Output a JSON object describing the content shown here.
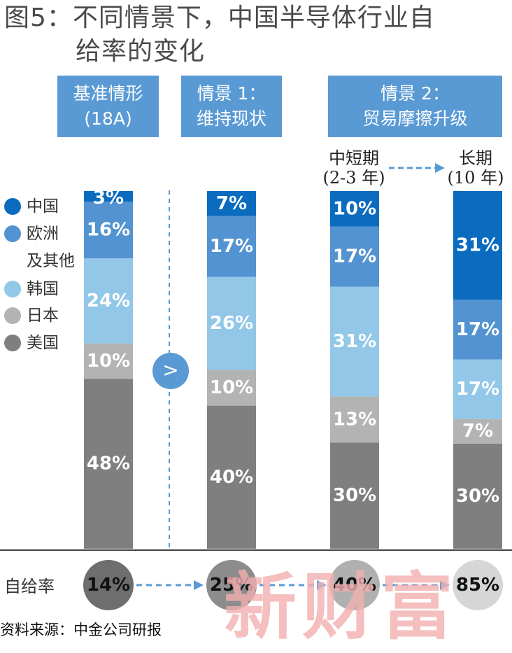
{
  "title": {
    "line1": "图5：不同情景下，中国半导体行业自",
    "line2": "给率的变化"
  },
  "scenarios": [
    {
      "line1": "基准情形",
      "line2": "(18A)"
    },
    {
      "line1": "情景 1：",
      "line2": "维持现状"
    },
    {
      "line1": "情景 2：",
      "line2": "贸易摩擦升级"
    }
  ],
  "periods": [
    {
      "line1": "中短期",
      "line2": "(2-3 年)"
    },
    {
      "line1": "长期",
      "line2": "(10 年)"
    }
  ],
  "legend": [
    {
      "label": "中国",
      "color": "#0a6bbf"
    },
    {
      "label": "欧洲",
      "label2": "及其他",
      "color": "#5493d1"
    },
    {
      "label": "韩国",
      "color": "#92c7e8"
    },
    {
      "label": "日本",
      "color": "#b3b3b3"
    },
    {
      "label": "美国",
      "color": "#7f7f7f"
    }
  ],
  "compare_symbol": ">",
  "self_sufficiency": {
    "label": "自给率",
    "values": [
      "14%",
      "25%",
      "40%",
      "85%"
    ]
  },
  "source": "资料来源：中金公司研报",
  "watermark": "新财富",
  "chart_data": {
    "type": "bar",
    "stacked": true,
    "categories": [
      "基准情形 (18A)",
      "情景 1：维持现状",
      "情景 2：中短期 (2-3 年)",
      "情景 2：长期 (10 年)"
    ],
    "series": [
      {
        "name": "美国",
        "color": "#7f7f7f",
        "values": [
          48,
          40,
          30,
          30
        ]
      },
      {
        "name": "日本",
        "color": "#b3b3b3",
        "values": [
          10,
          10,
          13,
          7
        ]
      },
      {
        "name": "韩国",
        "color": "#92c7e8",
        "values": [
          24,
          26,
          31,
          17
        ]
      },
      {
        "name": "欧洲及其他",
        "color": "#5493d1",
        "values": [
          16,
          17,
          17,
          17
        ]
      },
      {
        "name": "中国",
        "color": "#0a6bbf",
        "values": [
          3,
          7,
          10,
          31
        ]
      }
    ],
    "ylim": [
      0,
      100
    ]
  }
}
